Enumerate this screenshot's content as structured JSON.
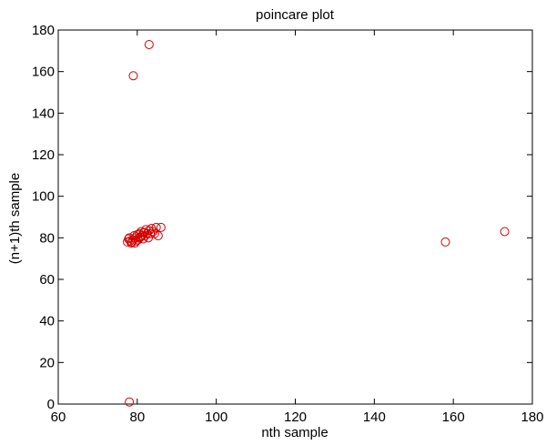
{
  "chart_data": {
    "type": "scatter",
    "title": "poincare plot",
    "xlabel": "nth sample",
    "ylabel": "(n+1)th sample",
    "xlim": [
      60,
      180
    ],
    "ylim": [
      0,
      180
    ],
    "xticks": [
      60,
      80,
      100,
      120,
      140,
      160,
      180
    ],
    "yticks": [
      0,
      20,
      40,
      60,
      80,
      100,
      120,
      140,
      160,
      180
    ],
    "grid": false,
    "legend": "none",
    "marker": "open-circle",
    "color": "#d40000",
    "series": [
      {
        "x": [
          83,
          79,
          158,
          173,
          78,
          77.5,
          77.8,
          78,
          78.2,
          78.5,
          79,
          79.2,
          79.5,
          79.8,
          80,
          80.2,
          80.5,
          80.8,
          81,
          81.2,
          81.5,
          81.8,
          82,
          82.2,
          82.5,
          82.8,
          83,
          83.3,
          83.6,
          84,
          84.4,
          84.8,
          85.3,
          86,
          78.6,
          79.4,
          80.6,
          81.6
        ],
        "y": [
          173,
          158,
          78,
          83,
          1,
          78,
          79.5,
          80,
          78.5,
          77.5,
          79,
          81,
          80,
          78.5,
          81.5,
          79,
          82,
          80.5,
          83,
          81,
          79.5,
          82.5,
          81,
          84,
          82,
          80,
          83.5,
          82,
          84.5,
          83,
          82,
          85,
          81,
          85,
          78,
          77.5,
          80,
          82.5
        ]
      }
    ]
  }
}
